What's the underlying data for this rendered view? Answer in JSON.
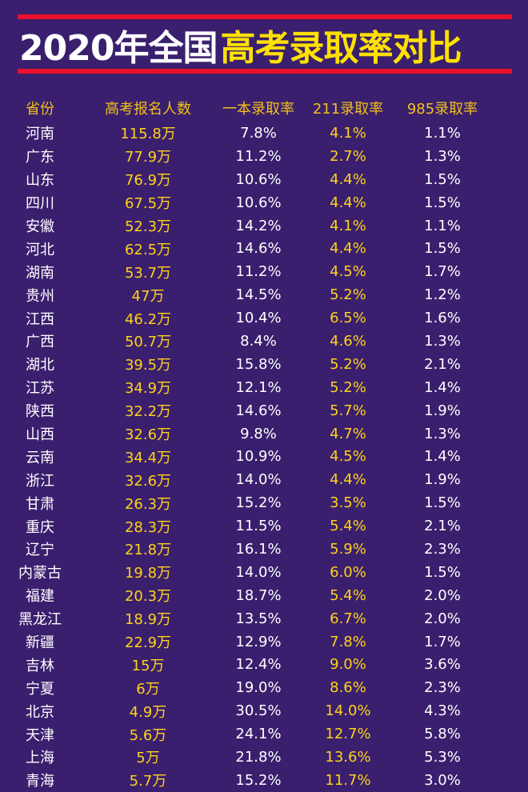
{
  "title_white": "2020年全国",
  "title_yellow": "高考录取率对比",
  "headers": [
    "省份",
    "高考报名人数",
    "一本录取率",
    "211录取率",
    "985录取率"
  ],
  "rows": [
    [
      "河南",
      "115.8万",
      "7.8%",
      "4.1%",
      "1.1%"
    ],
    [
      "广东",
      "77.9万",
      "11.2%",
      "2.7%",
      "1.3%"
    ],
    [
      "山东",
      "76.9万",
      "10.6%",
      "4.4%",
      "1.5%"
    ],
    [
      "四川",
      "67.5万",
      "10.6%",
      "4.4%",
      "1.5%"
    ],
    [
      "安徽",
      "52.3万",
      "14.2%",
      "4.1%",
      "1.1%"
    ],
    [
      "河北",
      "62.5万",
      "14.6%",
      "4.4%",
      "1.5%"
    ],
    [
      "湖南",
      "53.7万",
      "11.2%",
      "4.5%",
      "1.7%"
    ],
    [
      "贵州",
      "47万",
      "14.5%",
      "5.2%",
      "1.2%"
    ],
    [
      "江西",
      "46.2万",
      "10.4%",
      "6.5%",
      "1.6%"
    ],
    [
      "广西",
      "50.7万",
      "8.4%",
      "4.6%",
      "1.3%"
    ],
    [
      "湖北",
      "39.5万",
      "15.8%",
      "5.2%",
      "2.1%"
    ],
    [
      "江苏",
      "34.9万",
      "12.1%",
      "5.2%",
      "1.4%"
    ],
    [
      "陕西",
      "32.2万",
      "14.6%",
      "5.7%",
      "1.9%"
    ],
    [
      "山西",
      "32.6万",
      "9.8%",
      "4.7%",
      "1.3%"
    ],
    [
      "云南",
      "34.4万",
      "10.9%",
      "4.5%",
      "1.4%"
    ],
    [
      "浙江",
      "32.6万",
      "14.0%",
      "4.4%",
      "1.9%"
    ],
    [
      "甘肃",
      "26.3万",
      "15.2%",
      "3.5%",
      "1.5%"
    ],
    [
      "重庆",
      "28.3万",
      "11.5%",
      "5.4%",
      "2.1%"
    ],
    [
      "辽宁",
      "21.8万",
      "16.1%",
      "5.9%",
      "2.3%"
    ],
    [
      "内蒙古",
      "19.8万",
      "14.0%",
      "6.0%",
      "1.5%"
    ],
    [
      "福建",
      "20.3万",
      "18.7%",
      "5.4%",
      "2.0%"
    ],
    [
      "黑龙江",
      "18.9万",
      "13.5%",
      "6.7%",
      "2.0%"
    ],
    [
      "新疆",
      "22.9万",
      "12.9%",
      "7.8%",
      "1.7%"
    ],
    [
      "吉林",
      "15万",
      "12.4%",
      "9.0%",
      "3.6%"
    ],
    [
      "宁夏",
      "6万",
      "19.0%",
      "8.6%",
      "2.3%"
    ],
    [
      "北京",
      "4.9万",
      "30.5%",
      "14.0%",
      "4.3%"
    ],
    [
      "天津",
      "5.6万",
      "24.1%",
      "12.7%",
      "5.8%"
    ],
    [
      "上海",
      "5万",
      "21.8%",
      "13.6%",
      "5.3%"
    ],
    [
      "青海",
      "5.7万",
      "15.2%",
      "11.7%",
      "3.0%"
    ]
  ],
  "colors": {
    "background": "#3a1f6e",
    "rule": "#e8102a",
    "accent": "#ffd21a",
    "header": "#f0c018",
    "text": "#ffffff"
  }
}
